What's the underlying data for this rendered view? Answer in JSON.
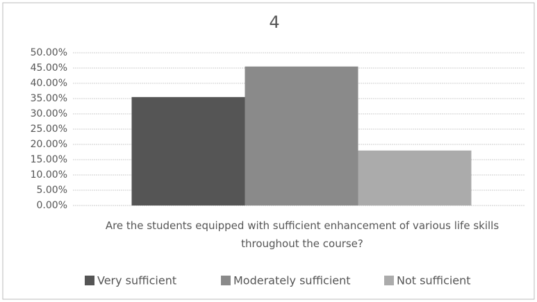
{
  "chart_data": {
    "type": "bar",
    "title": "4",
    "xlabel": "Are the students equipped with sufficient enhancement of various life skills throughout the course?",
    "series": [
      {
        "name": "Very sufficient",
        "color": "#555555",
        "values": [
          35.5
        ]
      },
      {
        "name": "Moderately sufficient",
        "color": "#8a8a8a",
        "values": [
          45.5
        ]
      },
      {
        "name": "Not sufficient",
        "color": "#ababab",
        "values": [
          18
        ]
      }
    ],
    "ylim": [
      0,
      50
    ],
    "yticks": [
      {
        "value": 0,
        "label": "0.00%"
      },
      {
        "value": 5,
        "label": "5.00%"
      },
      {
        "value": 10,
        "label": "10.00%"
      },
      {
        "value": 15,
        "label": "15.00%"
      },
      {
        "value": 20,
        "label": "20.00%"
      },
      {
        "value": 25,
        "label": "25.00%"
      },
      {
        "value": 30,
        "label": "30.00%"
      },
      {
        "value": 35,
        "label": "35.00%"
      },
      {
        "value": 40,
        "label": "40.00%"
      },
      {
        "value": 45,
        "label": "45.00%"
      },
      {
        "value": 50,
        "label": "50.00%"
      }
    ],
    "grid": true,
    "legend": "bottom"
  }
}
